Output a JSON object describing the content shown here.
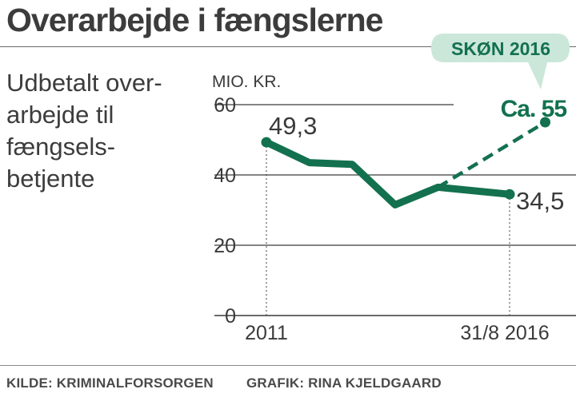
{
  "header": {
    "title": "Overarbejde i fængslerne",
    "subtitle_lines": [
      "Udbetalt over-",
      "arbejde til",
      "fængsels-",
      "betjente"
    ]
  },
  "footer": {
    "source": "KILDE: KRIMINALFORSORGEN",
    "credit": "GRAFIK: RINA KJELDGAARD"
  },
  "colors": {
    "series": "#13714f",
    "badge_bg": "#cbe7da",
    "badge_text": "#ffffff",
    "grid": "#3a3a3a",
    "text": "#3a3a3a"
  },
  "chart_data": {
    "type": "line",
    "ylabel": "MIO. KR.",
    "ylim": [
      0,
      60
    ],
    "yticks": [
      0,
      20,
      40,
      60
    ],
    "x": [
      2011.0,
      2012.0,
      2013.0,
      2014.0,
      2015.0,
      2016.67
    ],
    "xtick_labels": [
      "2011",
      "31/8 2016"
    ],
    "series": [
      {
        "name": "Udbetalt overarbejde",
        "values": [
          49.3,
          43.5,
          43.0,
          31.5,
          36.5,
          34.5
        ],
        "style": "solid"
      },
      {
        "name": "Skøn 2016",
        "x": [
          2015.0,
          2017.5
        ],
        "values": [
          36.5,
          55
        ],
        "style": "dashed"
      }
    ],
    "annotations": {
      "start_value": "49,3",
      "end_value": "34,5",
      "estimate_value": "Ca. 55",
      "estimate_badge": "SKØN 2016"
    }
  }
}
